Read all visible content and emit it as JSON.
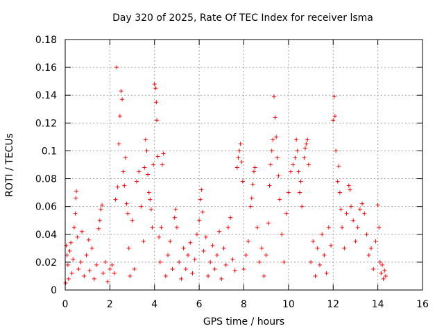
{
  "chart_data": {
    "type": "scatter",
    "title": "Day 320 of 2025, Rate Of TEC Index for receiver lsma",
    "xlabel": "GPS time / hours",
    "ylabel": "ROTI / TECUs",
    "xlim": [
      0,
      16
    ],
    "ylim": [
      0,
      0.18
    ],
    "xticks": [
      "0",
      "2",
      "4",
      "6",
      "8",
      "10",
      "12",
      "14",
      "16"
    ],
    "yticks": [
      "0",
      "0.02",
      "0.04",
      "0.06",
      "0.08",
      "0.1",
      "0.12",
      "0.14",
      "0.16",
      "0.18"
    ],
    "grid": true,
    "marker": "+",
    "color": "#ff0000",
    "series": [
      {
        "name": "ROTI",
        "points": [
          [
            0.02,
            0.005
          ],
          [
            0.05,
            0.032
          ],
          [
            0.08,
            0.025
          ],
          [
            0.12,
            0.018
          ],
          [
            0.15,
            0.008
          ],
          [
            0.2,
            0.028
          ],
          [
            0.25,
            0.034
          ],
          [
            0.3,
            0.012
          ],
          [
            0.35,
            0.022
          ],
          [
            0.4,
            0.045
          ],
          [
            0.45,
            0.055
          ],
          [
            0.48,
            0.066
          ],
          [
            0.5,
            0.071
          ],
          [
            0.55,
            0.038
          ],
          [
            0.6,
            0.015
          ],
          [
            0.7,
            0.02
          ],
          [
            0.75,
            0.042
          ],
          [
            0.85,
            0.01
          ],
          [
            0.95,
            0.025
          ],
          [
            1.05,
            0.036
          ],
          [
            1.1,
            0.014
          ],
          [
            1.2,
            0.03
          ],
          [
            1.3,
            0.008
          ],
          [
            1.4,
            0.018
          ],
          [
            1.5,
            0.044
          ],
          [
            1.55,
            0.05
          ],
          [
            1.6,
            0.058
          ],
          [
            1.65,
            0.061
          ],
          [
            1.7,
            0.012
          ],
          [
            1.8,
            0.02
          ],
          [
            1.9,
            0.006
          ],
          [
            2.0,
            0.015
          ],
          [
            2.1,
            0.018
          ],
          [
            2.2,
            0.012
          ],
          [
            2.25,
            0.065
          ],
          [
            2.3,
            0.16
          ],
          [
            2.35,
            0.074
          ],
          [
            2.4,
            0.105
          ],
          [
            2.45,
            0.125
          ],
          [
            2.5,
            0.143
          ],
          [
            2.55,
            0.137
          ],
          [
            2.6,
            0.085
          ],
          [
            2.65,
            0.075
          ],
          [
            2.7,
            0.095
          ],
          [
            2.75,
            0.062
          ],
          [
            2.8,
            0.055
          ],
          [
            2.85,
            0.03
          ],
          [
            2.9,
            0.01
          ],
          [
            3.0,
            0.05
          ],
          [
            3.1,
            0.015
          ],
          [
            3.2,
            0.078
          ],
          [
            3.3,
            0.085
          ],
          [
            3.4,
            0.06
          ],
          [
            3.5,
            0.035
          ],
          [
            3.55,
            0.088
          ],
          [
            3.6,
            0.108
          ],
          [
            3.65,
            0.1
          ],
          [
            3.7,
            0.083
          ],
          [
            3.75,
            0.07
          ],
          [
            3.8,
            0.065
          ],
          [
            3.85,
            0.058
          ],
          [
            3.9,
            0.045
          ],
          [
            3.95,
            0.09
          ],
          [
            4.0,
            0.148
          ],
          [
            4.05,
            0.145
          ],
          [
            4.08,
            0.135
          ],
          [
            4.1,
            0.122
          ],
          [
            4.15,
            0.096
          ],
          [
            4.2,
            0.038
          ],
          [
            4.25,
            0.02
          ],
          [
            4.3,
            0.045
          ],
          [
            4.35,
            0.09
          ],
          [
            4.4,
            0.098
          ],
          [
            4.5,
            0.01
          ],
          [
            4.6,
            0.025
          ],
          [
            4.7,
            0.035
          ],
          [
            4.8,
            0.015
          ],
          [
            4.9,
            0.052
          ],
          [
            4.95,
            0.058
          ],
          [
            5.0,
            0.045
          ],
          [
            5.1,
            0.02
          ],
          [
            5.2,
            0.008
          ],
          [
            5.3,
            0.03
          ],
          [
            5.4,
            0.015
          ],
          [
            5.5,
            0.025
          ],
          [
            5.6,
            0.034
          ],
          [
            5.7,
            0.012
          ],
          [
            5.8,
            0.022
          ],
          [
            5.9,
            0.04
          ],
          [
            6.0,
            0.05
          ],
          [
            6.05,
            0.065
          ],
          [
            6.1,
            0.072
          ],
          [
            6.15,
            0.056
          ],
          [
            6.2,
            0.028
          ],
          [
            6.3,
            0.038
          ],
          [
            6.4,
            0.01
          ],
          [
            6.5,
            0.02
          ],
          [
            6.6,
            0.032
          ],
          [
            6.7,
            0.015
          ],
          [
            6.8,
            0.025
          ],
          [
            6.9,
            0.042
          ],
          [
            7.0,
            0.008
          ],
          [
            7.1,
            0.03
          ],
          [
            7.2,
            0.018
          ],
          [
            7.3,
            0.045
          ],
          [
            7.4,
            0.052
          ],
          [
            7.5,
            0.022
          ],
          [
            7.6,
            0.014
          ],
          [
            7.7,
            0.088
          ],
          [
            7.75,
            0.095
          ],
          [
            7.8,
            0.1
          ],
          [
            7.85,
            0.105
          ],
          [
            7.9,
            0.092
          ],
          [
            7.95,
            0.078
          ],
          [
            8.0,
            0.015
          ],
          [
            8.1,
            0.025
          ],
          [
            8.2,
            0.035
          ],
          [
            8.3,
            0.06
          ],
          [
            8.35,
            0.066
          ],
          [
            8.4,
            0.076
          ],
          [
            8.45,
            0.085
          ],
          [
            8.5,
            0.088
          ],
          [
            8.6,
            0.045
          ],
          [
            8.7,
            0.02
          ],
          [
            8.8,
            0.03
          ],
          [
            8.9,
            0.01
          ],
          [
            9.0,
            0.025
          ],
          [
            9.1,
            0.048
          ],
          [
            9.15,
            0.075
          ],
          [
            9.2,
            0.09
          ],
          [
            9.25,
            0.1
          ],
          [
            9.3,
            0.108
          ],
          [
            9.35,
            0.139
          ],
          [
            9.4,
            0.124
          ],
          [
            9.45,
            0.11
          ],
          [
            9.5,
            0.095
          ],
          [
            9.55,
            0.082
          ],
          [
            9.6,
            0.065
          ],
          [
            9.7,
            0.04
          ],
          [
            9.8,
            0.02
          ],
          [
            9.9,
            0.055
          ],
          [
            10.0,
            0.07
          ],
          [
            10.1,
            0.085
          ],
          [
            10.2,
            0.09
          ],
          [
            10.3,
            0.095
          ],
          [
            10.35,
            0.108
          ],
          [
            10.4,
            0.1
          ],
          [
            10.45,
            0.085
          ],
          [
            10.5,
            0.07
          ],
          [
            10.55,
            0.078
          ],
          [
            10.6,
            0.06
          ],
          [
            10.7,
            0.095
          ],
          [
            10.75,
            0.102
          ],
          [
            10.8,
            0.105
          ],
          [
            10.85,
            0.108
          ],
          [
            10.9,
            0.09
          ],
          [
            11.0,
            0.02
          ],
          [
            11.1,
            0.035
          ],
          [
            11.2,
            0.01
          ],
          [
            11.3,
            0.03
          ],
          [
            11.4,
            0.018
          ],
          [
            11.5,
            0.04
          ],
          [
            11.6,
            0.025
          ],
          [
            11.7,
            0.012
          ],
          [
            11.8,
            0.045
          ],
          [
            11.9,
            0.032
          ],
          [
            12.0,
            0.122
          ],
          [
            12.05,
            0.139
          ],
          [
            12.08,
            0.125
          ],
          [
            12.12,
            0.1
          ],
          [
            12.2,
            0.078
          ],
          [
            12.25,
            0.089
          ],
          [
            12.3,
            0.07
          ],
          [
            12.35,
            0.058
          ],
          [
            12.4,
            0.045
          ],
          [
            12.5,
            0.03
          ],
          [
            12.6,
            0.055
          ],
          [
            12.7,
            0.075
          ],
          [
            12.75,
            0.072
          ],
          [
            12.8,
            0.06
          ],
          [
            12.9,
            0.05
          ],
          [
            13.0,
            0.035
          ],
          [
            13.1,
            0.045
          ],
          [
            13.2,
            0.058
          ],
          [
            13.3,
            0.062
          ],
          [
            13.4,
            0.055
          ],
          [
            13.5,
            0.04
          ],
          [
            13.6,
            0.025
          ],
          [
            13.7,
            0.03
          ],
          [
            13.8,
            0.015
          ],
          [
            13.9,
            0.035
          ],
          [
            14.0,
            0.061
          ],
          [
            14.05,
            0.045
          ],
          [
            14.1,
            0.02
          ],
          [
            14.15,
            0.012
          ],
          [
            14.2,
            0.018
          ],
          [
            14.25,
            0.008
          ],
          [
            14.3,
            0.014
          ],
          [
            14.35,
            0.01
          ]
        ]
      }
    ]
  }
}
